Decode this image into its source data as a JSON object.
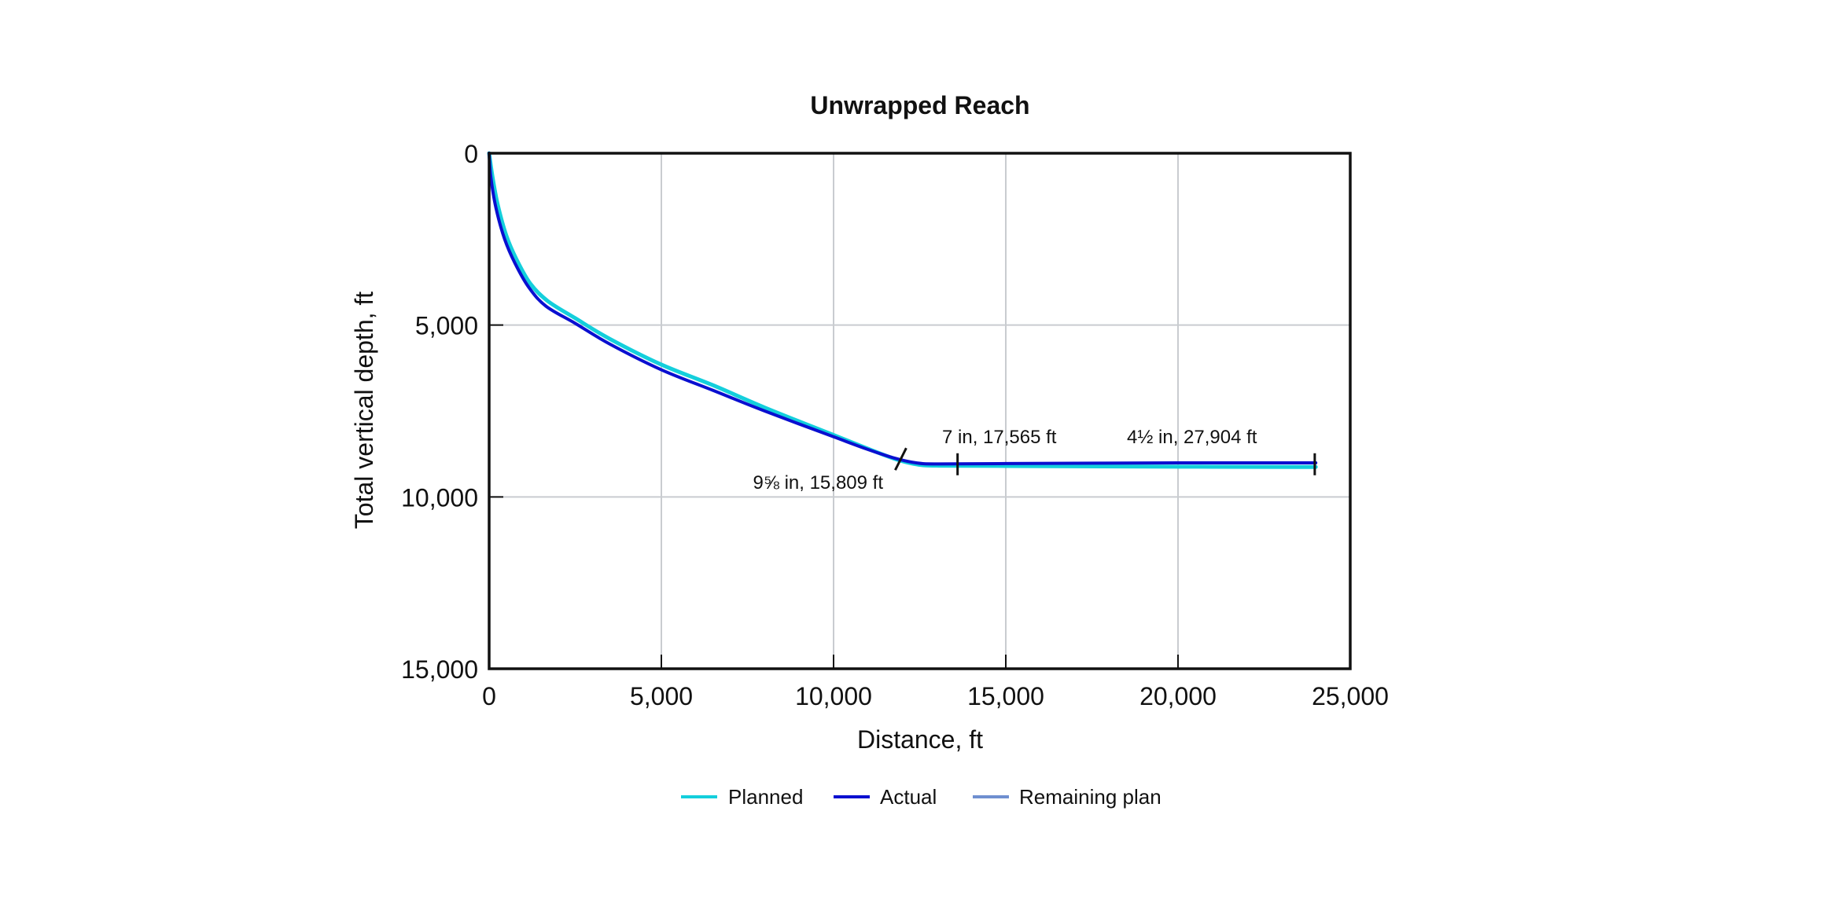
{
  "chart_data": {
    "type": "line",
    "title": "Unwrapped Reach",
    "xlabel": "Distance, ft",
    "ylabel": "Total vertical depth, ft",
    "xlim": [
      0,
      25000
    ],
    "ylim": [
      0,
      15000
    ],
    "y_inverted": true,
    "grid": true,
    "x_ticks": [
      0,
      5000,
      10000,
      15000,
      20000,
      25000
    ],
    "x_tick_labels": [
      "0",
      "5,000",
      "10,000",
      "15,000",
      "20,000",
      "25,000"
    ],
    "y_ticks": [
      0,
      5000,
      10000,
      15000
    ],
    "y_tick_labels": [
      "0",
      "5,000",
      "10,000",
      "15,000"
    ],
    "legend_position": "bottom",
    "series": [
      {
        "name": "Planned",
        "color": "#14cfdc",
        "points": [
          [
            0,
            0
          ],
          [
            100,
            700
          ],
          [
            250,
            1500
          ],
          [
            500,
            2400
          ],
          [
            800,
            3100
          ],
          [
            1200,
            3800
          ],
          [
            1700,
            4300
          ],
          [
            2500,
            4800
          ],
          [
            3500,
            5400
          ],
          [
            5000,
            6150
          ],
          [
            6500,
            6750
          ],
          [
            8000,
            7400
          ],
          [
            10000,
            8200
          ],
          [
            11000,
            8600
          ],
          [
            11800,
            8900
          ],
          [
            12400,
            9050
          ],
          [
            13000,
            9090
          ],
          [
            15000,
            9100
          ],
          [
            20000,
            9120
          ],
          [
            24000,
            9130
          ]
        ]
      },
      {
        "name": "Actual",
        "color": "#0a0fd0",
        "points": [
          [
            0,
            0
          ],
          [
            50,
            700
          ],
          [
            200,
            1600
          ],
          [
            450,
            2500
          ],
          [
            750,
            3200
          ],
          [
            1150,
            3900
          ],
          [
            1650,
            4450
          ],
          [
            2500,
            4950
          ],
          [
            3500,
            5550
          ],
          [
            5000,
            6300
          ],
          [
            6500,
            6900
          ],
          [
            8000,
            7500
          ],
          [
            10000,
            8250
          ],
          [
            11000,
            8620
          ],
          [
            11800,
            8880
          ],
          [
            12400,
            9010
          ],
          [
            13000,
            9040
          ],
          [
            15000,
            9030
          ],
          [
            20000,
            9010
          ],
          [
            24000,
            9010
          ]
        ]
      },
      {
        "name": "Remaining plan",
        "color": "#6f8fd0",
        "points": []
      }
    ],
    "annotations": [
      {
        "label": "9⅝ in, 15,809 ft",
        "x": 11950,
        "y": 8900,
        "marker": "slash"
      },
      {
        "label": "7 in, 17,565 ft",
        "x": 13600,
        "y": 9050,
        "marker": "tick"
      },
      {
        "label": "4½ in, 27,904 ft",
        "x": 23970,
        "y": 9050,
        "marker": "tick"
      }
    ]
  },
  "legend": {
    "items": [
      {
        "label": "Planned",
        "color": "#14cfdc"
      },
      {
        "label": "Actual",
        "color": "#0a0fd0"
      },
      {
        "label": "Remaining plan",
        "color": "#6f8fd0"
      }
    ]
  }
}
